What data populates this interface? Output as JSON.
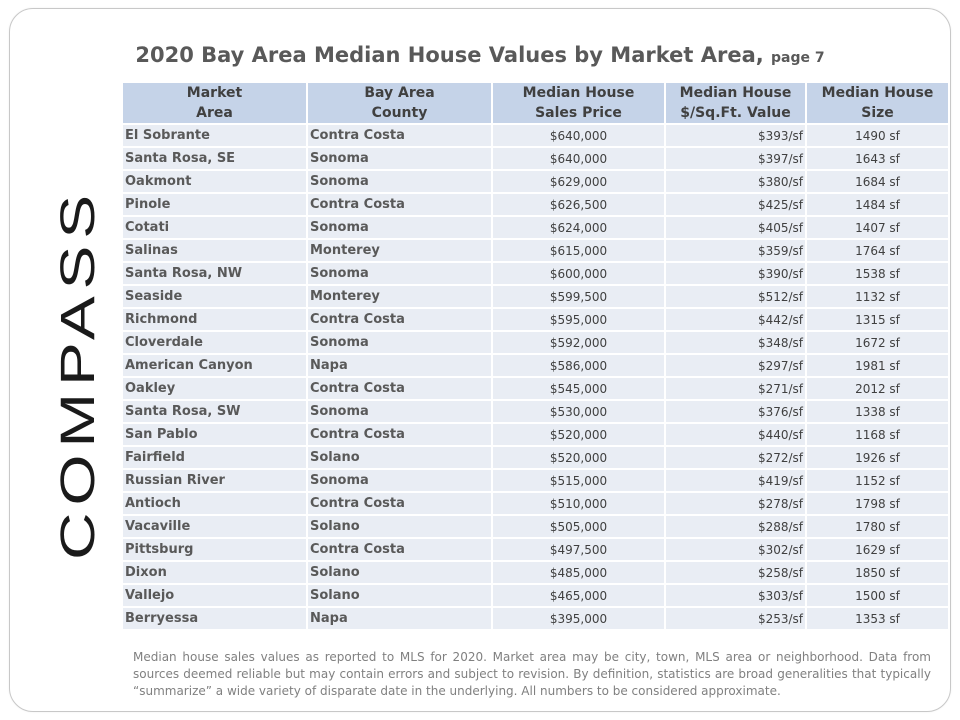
{
  "title": {
    "main": "2020 Bay Area Median House Values by Market Area,",
    "page": "page 7"
  },
  "logo": {
    "text": "COMPASS",
    "color": "#1a1a1a"
  },
  "table": {
    "headers": [
      {
        "line1": "Market",
        "line2": "Area"
      },
      {
        "line1": "Bay Area",
        "line2": "County"
      },
      {
        "line1": "Median House",
        "line2": "Sales Price"
      },
      {
        "line1": "Median House",
        "line2": "$/Sq.Ft. Value"
      },
      {
        "line1": "Median House",
        "line2": "Size"
      }
    ],
    "rows": [
      {
        "area": "El Sobrante",
        "county": "Contra Costa",
        "price": "$640,000",
        "psf": "$393/sf",
        "size": "1490  sf"
      },
      {
        "area": "Santa Rosa, SE",
        "county": "Sonoma",
        "price": "$640,000",
        "psf": "$397/sf",
        "size": "1643  sf"
      },
      {
        "area": "Oakmont",
        "county": "Sonoma",
        "price": "$629,000",
        "psf": "$380/sf",
        "size": "1684  sf"
      },
      {
        "area": "Pinole",
        "county": "Contra Costa",
        "price": "$626,500",
        "psf": "$425/sf",
        "size": "1484  sf"
      },
      {
        "area": "Cotati",
        "county": "Sonoma",
        "price": "$624,000",
        "psf": "$405/sf",
        "size": "1407  sf"
      },
      {
        "area": "Salinas",
        "county": "Monterey",
        "price": "$615,000",
        "psf": "$359/sf",
        "size": "1764  sf"
      },
      {
        "area": "Santa Rosa, NW",
        "county": "Sonoma",
        "price": "$600,000",
        "psf": "$390/sf",
        "size": "1538  sf"
      },
      {
        "area": "Seaside",
        "county": "Monterey",
        "price": "$599,500",
        "psf": "$512/sf",
        "size": "1132  sf"
      },
      {
        "area": "Richmond",
        "county": "Contra Costa",
        "price": "$595,000",
        "psf": "$442/sf",
        "size": "1315  sf"
      },
      {
        "area": "Cloverdale",
        "county": "Sonoma",
        "price": "$592,000",
        "psf": "$348/sf",
        "size": "1672  sf"
      },
      {
        "area": "American Canyon",
        "county": "Napa",
        "price": "$586,000",
        "psf": "$297/sf",
        "size": "1981  sf"
      },
      {
        "area": "Oakley",
        "county": "Contra Costa",
        "price": "$545,000",
        "psf": "$271/sf",
        "size": "2012  sf"
      },
      {
        "area": "Santa Rosa, SW",
        "county": "Sonoma",
        "price": "$530,000",
        "psf": "$376/sf",
        "size": "1338  sf"
      },
      {
        "area": "San Pablo",
        "county": "Contra Costa",
        "price": "$520,000",
        "psf": "$440/sf",
        "size": "1168  sf"
      },
      {
        "area": "Fairfield",
        "county": "Solano",
        "price": "$520,000",
        "psf": "$272/sf",
        "size": "1926  sf"
      },
      {
        "area": "Russian River",
        "county": "Sonoma",
        "price": "$515,000",
        "psf": "$419/sf",
        "size": "1152  sf"
      },
      {
        "area": "Antioch",
        "county": "Contra Costa",
        "price": "$510,000",
        "psf": "$278/sf",
        "size": "1798  sf"
      },
      {
        "area": "Vacaville",
        "county": "Solano",
        "price": "$505,000",
        "psf": "$288/sf",
        "size": "1780  sf"
      },
      {
        "area": "Pittsburg",
        "county": "Contra Costa",
        "price": "$497,500",
        "psf": "$302/sf",
        "size": "1629  sf"
      },
      {
        "area": "Dixon",
        "county": "Solano",
        "price": "$485,000",
        "psf": "$258/sf",
        "size": "1850  sf"
      },
      {
        "area": "Vallejo",
        "county": "Solano",
        "price": "$465,000",
        "psf": "$303/sf",
        "size": "1500  sf"
      },
      {
        "area": "Berryessa",
        "county": "Napa",
        "price": "$395,000",
        "psf": "$253/sf",
        "size": "1353  sf"
      }
    ]
  },
  "footnote": "Median house sales values as reported to MLS for 2020. Market area may be city, town, MLS area or neighborhood. Data from sources deemed reliable but may contain errors and subject to revision. By definition, statistics are broad generalities that typically “summarize” a wide variety of disparate date in the underlying. All numbers to be considered approximate.",
  "colors": {
    "header_bg": "#c5d3e8",
    "row_bg": "#e9edf4",
    "title_text": "#595959",
    "footnote_text": "#808080"
  }
}
